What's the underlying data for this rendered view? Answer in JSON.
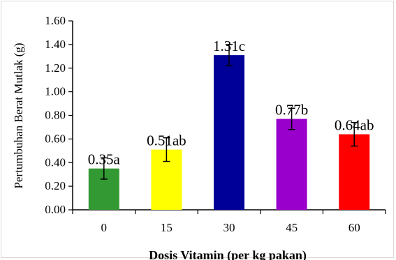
{
  "chart_data": {
    "type": "bar",
    "title": "",
    "xlabel": "Dosis Vitamin (per kg pakan)",
    "ylabel": "Pertumbuhan Berat Mutlak (g)",
    "ylim": [
      0,
      1.6
    ],
    "yticks": [
      "0.00",
      "0.20",
      "0.40",
      "0.60",
      "0.80",
      "1.00",
      "1.20",
      "1.40",
      "1.60"
    ],
    "categories": [
      "0",
      "15",
      "30",
      "45",
      "60"
    ],
    "values": [
      0.35,
      0.51,
      1.31,
      0.77,
      0.64
    ],
    "errors": [
      0.09,
      0.1,
      0.09,
      0.09,
      0.1
    ],
    "data_labels": [
      "0.35a",
      "0.51ab",
      "1.31c",
      "0.77b",
      "0.64ab"
    ],
    "colors": [
      "#339933",
      "#ffff00",
      "#000099",
      "#9900cc",
      "#ff0000"
    ],
    "grid": false,
    "legend": "none"
  }
}
